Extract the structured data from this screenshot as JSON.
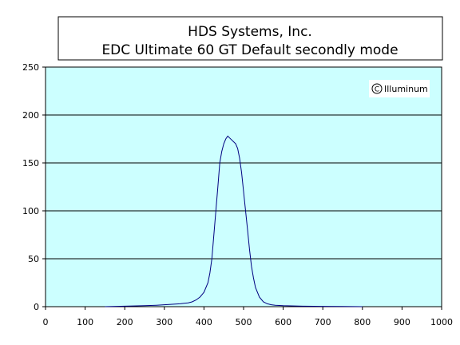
{
  "chart_data": {
    "type": "line",
    "title": "HDS Systems, Inc.",
    "subtitle": "EDC Ultimate 60 GT Default secondly mode",
    "watermark": "Illuminum",
    "xlabel": "",
    "ylabel": "",
    "xlim": [
      0,
      1000
    ],
    "ylim": [
      0,
      250
    ],
    "xticks": [
      0,
      100,
      200,
      300,
      400,
      500,
      600,
      700,
      800,
      900,
      1000
    ],
    "yticks": [
      0,
      50,
      100,
      150,
      200,
      250
    ],
    "grid": {
      "horizontal": true,
      "vertical": false
    },
    "legend": "none",
    "colors": {
      "plot_background": "#ccffff",
      "line": "#000080",
      "grid": "#000000"
    },
    "series": [
      {
        "x": [
          150,
          200,
          250,
          280,
          300,
          320,
          340,
          350,
          360,
          370,
          380,
          390,
          400,
          410,
          415,
          420,
          425,
          430,
          435,
          440,
          445,
          450,
          455,
          460,
          465,
          470,
          475,
          480,
          485,
          490,
          495,
          500,
          505,
          510,
          515,
          520,
          525,
          530,
          540,
          550,
          560,
          570,
          580,
          600,
          650,
          700,
          750,
          800
        ],
        "y": [
          0,
          0.5,
          1,
          1.5,
          2,
          2.5,
          3,
          3.5,
          4,
          5,
          7,
          10,
          15,
          25,
          35,
          50,
          75,
          100,
          125,
          150,
          162,
          170,
          175,
          178,
          176,
          174,
          172,
          170,
          165,
          155,
          140,
          120,
          100,
          80,
          60,
          42,
          30,
          20,
          10,
          5,
          3,
          2,
          1.5,
          1,
          0.5,
          0.3,
          0.2,
          0
        ]
      }
    ]
  }
}
